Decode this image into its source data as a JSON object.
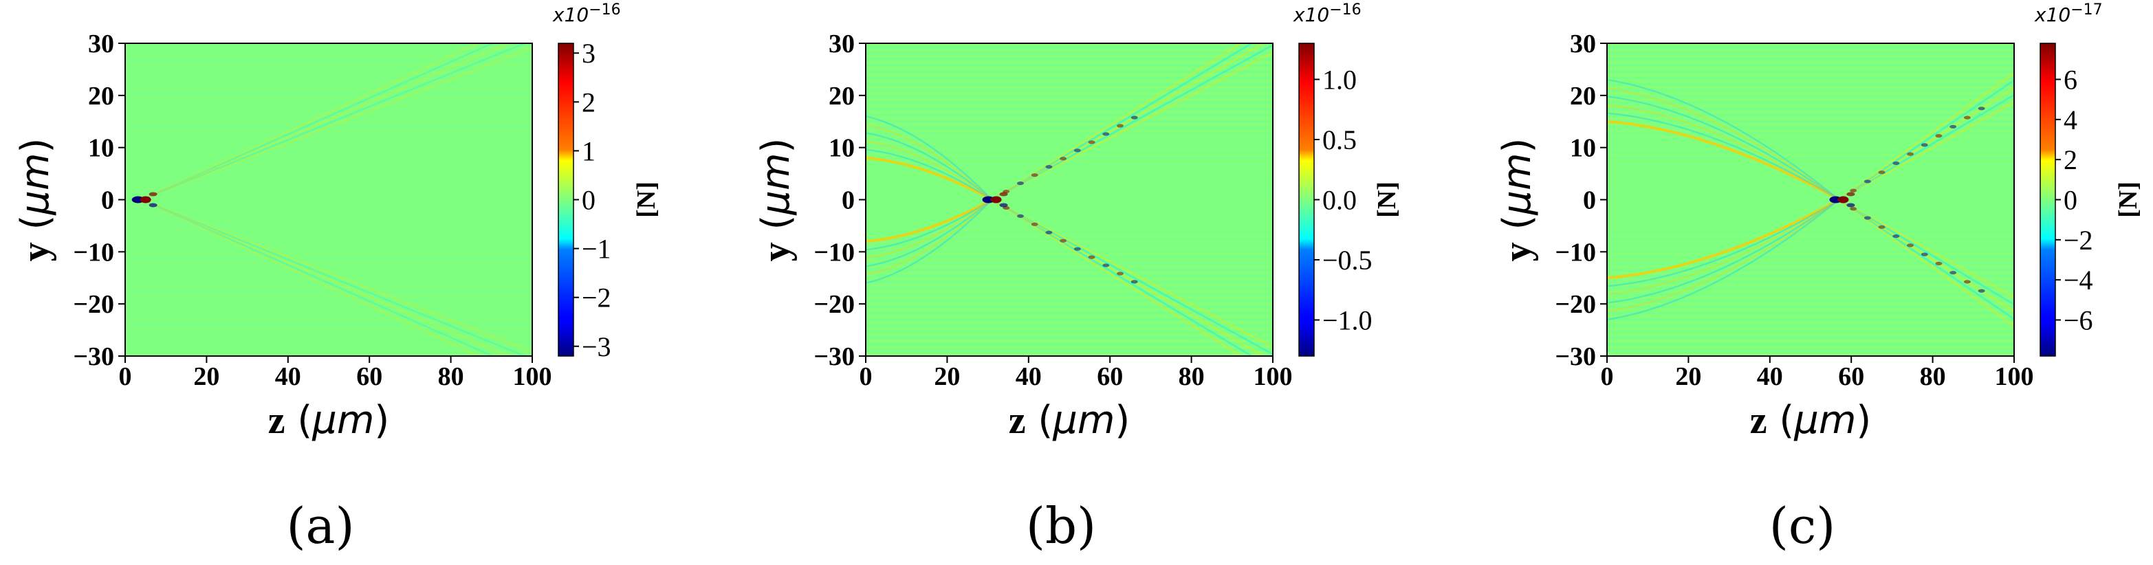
{
  "chart_data": [
    {
      "type": "heatmap",
      "panel_label": "(a)",
      "xlabel": {
        "var": "z",
        "open": " (",
        "unit": "μm",
        "close": ")"
      },
      "ylabel": {
        "var": "y",
        "open": " (",
        "unit": "μm",
        "close": ")"
      },
      "xlim": [
        0,
        100
      ],
      "ylim": [
        -30,
        30
      ],
      "xticks": [
        "0",
        "20",
        "40",
        "60",
        "80",
        "100"
      ],
      "yticks": [
        "30",
        "20",
        "10",
        "0",
        "−10",
        "−20",
        "−30"
      ],
      "colorbar": {
        "multiplier": {
          "prefix": "x10",
          "exp": "−16"
        },
        "unit": "[N]",
        "ticks": [
          "3",
          "2",
          "1",
          "0",
          "−1",
          "−2",
          "−3"
        ],
        "range": [
          -3.2,
          3.2
        ],
        "colormap": "jet"
      },
      "focus_z": 4,
      "cone_halfwidth": 30
    },
    {
      "type": "heatmap",
      "panel_label": "(b)",
      "xlabel": {
        "var": "z",
        "open": " (",
        "unit": "μm",
        "close": ")"
      },
      "ylabel": {
        "var": "y",
        "open": " (",
        "unit": "μm",
        "close": ")"
      },
      "xlim": [
        0,
        100
      ],
      "ylim": [
        -30,
        30
      ],
      "xticks": [
        "0",
        "20",
        "40",
        "60",
        "80",
        "100"
      ],
      "yticks": [
        "30",
        "20",
        "10",
        "0",
        "−10",
        "−20",
        "−30"
      ],
      "colorbar": {
        "multiplier": {
          "prefix": "x10",
          "exp": "−16"
        },
        "unit": "[N]",
        "ticks": [
          "1.0",
          "0.5",
          "0.0",
          "−0.5",
          "−1.0"
        ],
        "range": [
          -1.3,
          1.3
        ],
        "colormap": "jet"
      },
      "focus_z": 31,
      "cone_halfwidth": 30
    },
    {
      "type": "heatmap",
      "panel_label": "(c)",
      "xlabel": {
        "var": "z",
        "open": " (",
        "unit": "μm",
        "close": ")"
      },
      "ylabel": {
        "var": "y",
        "open": " (",
        "unit": "μm",
        "close": ")"
      },
      "xlim": [
        0,
        100
      ],
      "ylim": [
        -30,
        30
      ],
      "xticks": [
        "0",
        "20",
        "40",
        "60",
        "80",
        "100"
      ],
      "yticks": [
        "30",
        "20",
        "10",
        "0",
        "−10",
        "−20",
        "−30"
      ],
      "colorbar": {
        "multiplier": {
          "prefix": "x10",
          "exp": "−17"
        },
        "unit": "[N]",
        "ticks": [
          "6",
          "4",
          "2",
          "0",
          "−2",
          "−4",
          "−6"
        ],
        "range": [
          -7.8,
          7.8
        ],
        "colormap": "jet"
      },
      "focus_z": 57,
      "cone_halfwidth": 30
    }
  ],
  "colors": {
    "background": "#7fff7f",
    "positive": "#7f0000",
    "negative": "#00007f"
  }
}
